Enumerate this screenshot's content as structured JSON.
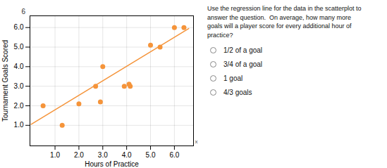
{
  "chart_data": {
    "type": "scatter",
    "xlabel": "Hours of Practice",
    "ylabel": "Tournament Goals Scored",
    "series": [
      {
        "type": "scatter",
        "x": [
          0.5,
          1.3,
          2.0,
          2.7,
          2.9,
          3.0,
          3.9,
          4.1,
          4.15,
          5.0,
          5.4,
          6.0,
          6.4
        ],
        "values": [
          2.0,
          1.0,
          2.1,
          3.0,
          2.2,
          4.0,
          3.0,
          3.1,
          3.0,
          5.1,
          5.0,
          6.0,
          6.0
        ],
        "color": "#F5943A"
      },
      {
        "type": "line",
        "x": [
          0.0,
          6.6
        ],
        "values": [
          1.05,
          5.95
        ],
        "color": "#F5943A"
      }
    ],
    "xlim": [
      -0.05,
      6.8
    ],
    "ylim": [
      -0.05,
      6.6
    ],
    "xticks": [
      1,
      2,
      3,
      4,
      5,
      6
    ],
    "yticks": [
      1,
      2,
      3,
      4,
      5,
      6
    ],
    "grid": true,
    "annotations": [
      "x",
      "6"
    ],
    "question_text": "Use the regression line for the data in the scatterplot to\nanswer the question.  On average, how many more\ngoals will a player score for every additional hour of\npractice?",
    "options": [
      "1/2 of a goal",
      "3/4 of a goal",
      "1 goal",
      "4/3 goals"
    ]
  }
}
